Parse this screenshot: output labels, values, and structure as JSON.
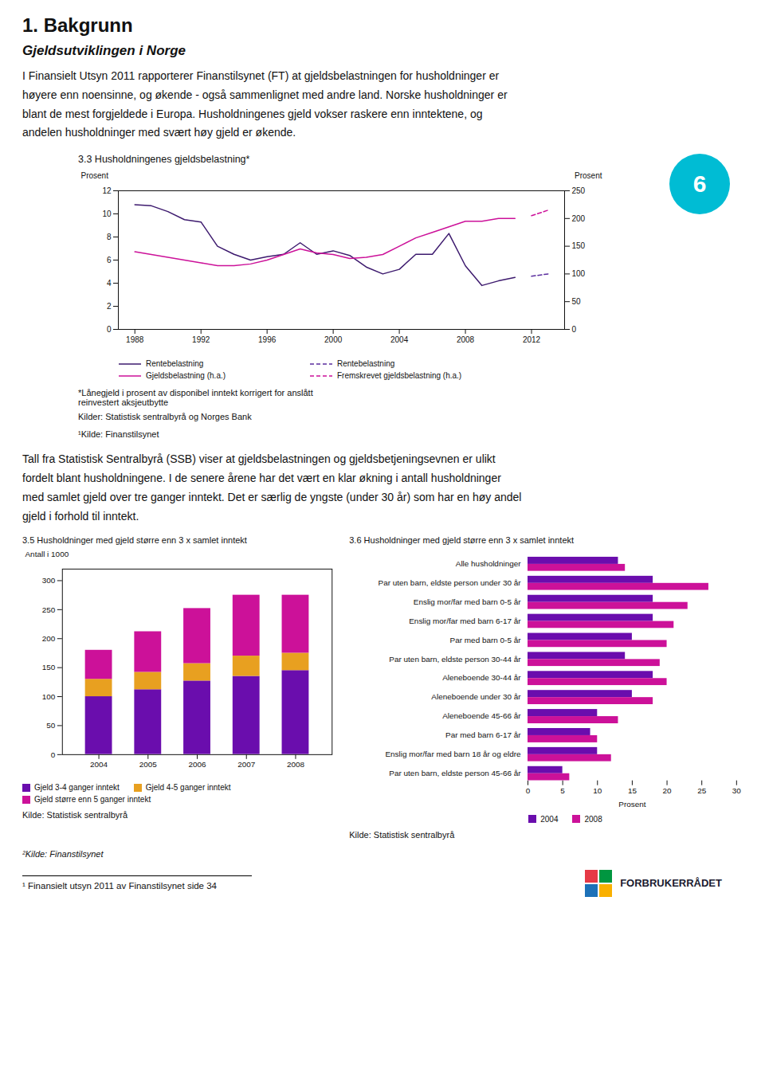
{
  "chart_data": [
    {
      "type": "line",
      "title": "3.3 Husholdningenes gjeldsbelastning*",
      "annotations": [
        "1. Bakgrunn",
        "Gjeldsutviklingen i Norge",
        "I Finansielt Utsyn 2011 rapporterer Finanstilsynet (FT) at gjeldsbelastningen for husholdninger er\nhøyere enn noensinne, og økende - også sammenlignet med andre land. Norske husholdninger er\nblant de mest forgjeldede i Europa. Husholdningenes gjeld vokser raskere enn inntektene, og\nandelen husholdninger med svært høy gjeld er økende.",
        "6",
        "*Lånegjeld i prosent av disponibel inntekt korrigert for anslått\nreinvestert aksjeutbytte",
        "Kilder: Statistisk sentralbyrå og Norges Bank",
        "¹Kilde: Finanstilsynet"
      ],
      "x": [
        1988,
        1989,
        1990,
        1991,
        1992,
        1993,
        1994,
        1995,
        1996,
        1997,
        1998,
        1999,
        2000,
        2001,
        2002,
        2003,
        2004,
        2005,
        2006,
        2007,
        2008,
        2009,
        2010,
        2011,
        2012,
        2013
      ],
      "xlim": [
        1987,
        2014
      ],
      "xticks": [
        1988,
        1992,
        1996,
        2000,
        2004,
        2008,
        2012
      ],
      "ylabel": "Prosent",
      "ylim": [
        0,
        12
      ],
      "yticks": [
        0,
        2,
        4,
        6,
        8,
        10,
        12
      ],
      "y2label": "Prosent",
      "y2lim": [
        0,
        250
      ],
      "y2ticks": [
        0,
        50,
        100,
        150,
        200,
        250
      ],
      "grid": false,
      "legend": "bottom",
      "series": [
        {
          "name": "Rentebelastning",
          "color": "#3D1A6E",
          "line_style": "solid",
          "values": [
            10.8,
            10.7,
            10.2,
            9.5,
            9.3,
            7.2,
            6.5,
            6.0,
            6.3,
            6.5,
            7.5,
            6.5,
            6.8,
            6.4,
            5.4,
            4.8,
            5.2,
            6.5,
            6.5,
            8.3,
            5.5,
            3.8,
            4.2,
            4.5,
            null,
            null
          ]
        },
        {
          "name": "Rentebelastning",
          "color": "#5A2D9E",
          "line_style": "dashed",
          "values": [
            null,
            null,
            null,
            null,
            null,
            null,
            null,
            null,
            null,
            null,
            null,
            null,
            null,
            null,
            null,
            null,
            null,
            null,
            null,
            null,
            null,
            null,
            null,
            null,
            4.6,
            4.8
          ]
        },
        {
          "name": "Gjeldsbelastning (h.a.)",
          "color": "#CC1199",
          "line_style": "solid",
          "axis": "y2",
          "values": [
            140,
            135,
            130,
            125,
            120,
            115,
            115,
            118,
            125,
            135,
            145,
            138,
            135,
            128,
            130,
            135,
            150,
            165,
            175,
            185,
            195,
            195,
            200,
            200,
            null,
            null
          ]
        },
        {
          "name": "Fremskrevet gjeldsbelastning (h.a.)",
          "color": "#CC1199",
          "line_style": "dashed",
          "axis": "y2",
          "values": [
            null,
            null,
            null,
            null,
            null,
            null,
            null,
            null,
            null,
            null,
            null,
            null,
            null,
            null,
            null,
            null,
            null,
            null,
            null,
            null,
            null,
            null,
            null,
            null,
            205,
            215
          ]
        }
      ]
    },
    {
      "type": "bar",
      "title": "3.5 Husholdninger med gjeld større enn 3 x samlet inntekt",
      "annotations": [
        "Tall fra Statistisk Sentralbyrå (SSB) viser at gjeldsbelastningen og gjeldsbetjeningsevnen er ulikt\nfordelt blant husholdningene. I de senere årene har det vært en klar økning i antall husholdninger\nmed samlet gjeld over tre ganger inntekt. Det er særlig de yngste (under 30 år) som har en høy andel\ngjeld i forhold til inntekt.",
        "Kilde: Statistisk sentralbyrå"
      ],
      "categories": [
        "2004",
        "2005",
        "2006",
        "2007",
        "2008"
      ],
      "ylabel": "Antall i 1000",
      "ylim": [
        0,
        320
      ],
      "yticks": [
        0,
        50,
        100,
        150,
        200,
        250,
        300
      ],
      "stacked": true,
      "grid": false,
      "legend": "bottom",
      "series": [
        {
          "name": "Gjeld 3-4 ganger inntekt",
          "color": "#6A0DAD",
          "values": [
            100,
            112,
            127,
            135,
            145
          ]
        },
        {
          "name": "Gjeld 4-5 ganger inntekt",
          "color": "#E8A020",
          "values": [
            30,
            30,
            30,
            35,
            30
          ]
        },
        {
          "name": "Gjeld større enn 5 ganger inntekt",
          "color": "#CC1199",
          "values": [
            50,
            70,
            95,
            105,
            100
          ]
        }
      ]
    },
    {
      "type": "bar",
      "orientation": "horizontal",
      "title": "3.6 Husholdninger med gjeld større enn 3 x samlet inntekt",
      "annotations": [
        "Kilde: Statistisk sentralbyrå",
        "²Kilde: Finanstilsynet",
        "¹ Finansielt utsyn 2011 av Finanstilsynet side 34",
        "FORBRUKERRÅDET"
      ],
      "categories": [
        "Alle husholdninger",
        "Par uten barn, eldste person under 30 år",
        "Enslig mor/far med barn 0-5 år",
        "Enslig mor/far med barn 6-17 år",
        "Par med barn 0-5 år",
        "Par uten barn, eldste person 30-44 år",
        "Aleneboende 30-44 år",
        "Aleneboende under 30 år",
        "Aleneboende 45-66 år",
        "Par med barn 6-17 år",
        "Enslig mor/far med barn 18 år og eldre",
        "Par uten barn, eldste person 45-66 år"
      ],
      "xlabel": "Prosent",
      "xlim": [
        0,
        30
      ],
      "xticks": [
        0,
        5,
        10,
        15,
        20,
        25,
        30
      ],
      "grid": false,
      "legend": "bottom",
      "series": [
        {
          "name": "2004",
          "color": "#6A0DAD",
          "values": [
            13,
            18,
            18,
            18,
            15,
            14,
            18,
            15,
            10,
            9,
            10,
            5
          ]
        },
        {
          "name": "2008",
          "color": "#CC1199",
          "values": [
            14,
            26,
            23,
            21,
            20,
            19,
            20,
            18,
            13,
            10,
            12,
            6
          ]
        }
      ]
    }
  ]
}
